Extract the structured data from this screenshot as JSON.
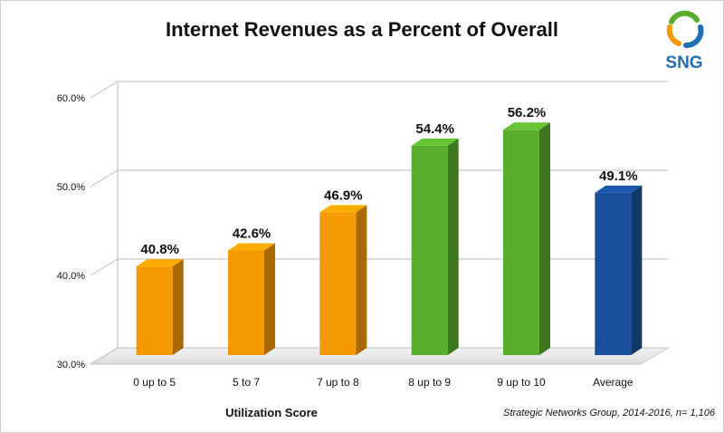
{
  "chart_data": {
    "type": "bar",
    "title": "Internet Revenues as a Percent of Overall",
    "xlabel": "Utilization Score",
    "ylabel": "",
    "categories": [
      "0 up to 5",
      "5 to 7",
      "7 up to 8",
      "8 up to 9",
      "9 up to 10",
      "Average"
    ],
    "values": [
      40.8,
      42.6,
      46.9,
      54.4,
      56.2,
      49.1
    ],
    "data_labels": [
      "40.8%",
      "42.6%",
      "46.9%",
      "54.4%",
      "56.2%",
      "49.1%"
    ],
    "bar_colors": [
      "#f59a00",
      "#f59a00",
      "#f59a00",
      "#5aae2e",
      "#5aae2e",
      "#1a4f9c"
    ],
    "ylim": [
      30,
      60
    ],
    "yticks": [
      30,
      40,
      50,
      60
    ],
    "ytick_labels": [
      "30.0%",
      "40.0%",
      "50.0%",
      "60.0%"
    ],
    "grid": true,
    "style": "3d-column",
    "source_note": "Strategic Networks Group, 2014-2016, n= 1,106"
  },
  "logo": {
    "text": "SNG",
    "text_color": "#1f6fb5",
    "arrow_colors": [
      "#5aae2e",
      "#1f6fb5",
      "#f59a00"
    ]
  }
}
